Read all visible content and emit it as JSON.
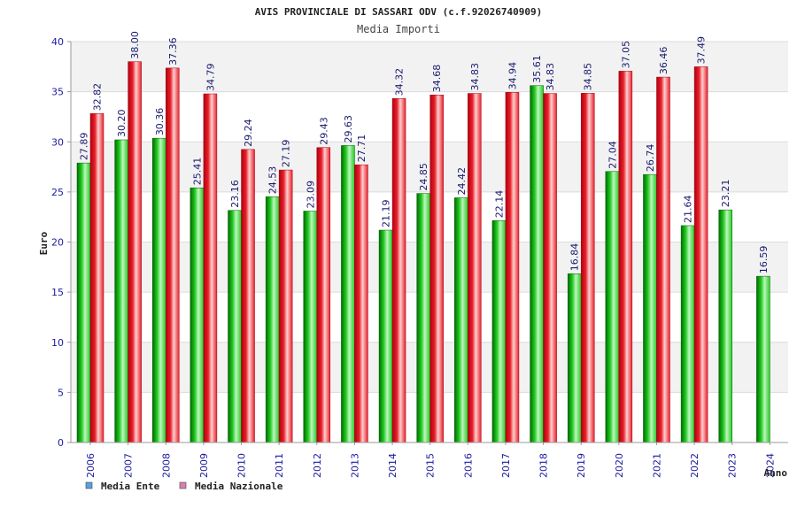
{
  "chart_data": {
    "type": "bar",
    "title": "AVIS PROVINCIALE DI SASSARI ODV (c.f.92026740909)",
    "subtitle": "Media Importi",
    "xlabel": "Anno",
    "ylabel": "Euro",
    "ylim": [
      0,
      40
    ],
    "yticks": [
      "0",
      "5",
      "10",
      "15",
      "20",
      "25",
      "30",
      "35",
      "40"
    ],
    "grid": true,
    "legend_position": "bottom-left",
    "categories": [
      "2006",
      "2007",
      "2008",
      "2009",
      "2010",
      "2011",
      "2012",
      "2013",
      "2014",
      "2015",
      "2016",
      "2017",
      "2018",
      "2019",
      "2020",
      "2021",
      "2022",
      "2023",
      "2024"
    ],
    "series": [
      {
        "name": "Media Ente",
        "color": "#00aa00",
        "legend_color": "#5aa0e0",
        "values": [
          27.89,
          30.2,
          30.36,
          25.41,
          23.16,
          24.53,
          23.09,
          29.63,
          21.19,
          24.85,
          24.42,
          22.14,
          35.61,
          16.84,
          27.04,
          26.74,
          21.64,
          23.21,
          16.59
        ],
        "labels": [
          "27.89",
          "30.20",
          "30.36",
          "25.41",
          "23.16",
          "24.53",
          "23.09",
          "29.63",
          "21.19",
          "24.85",
          "24.42",
          "22.14",
          "35.61",
          "16.84",
          "27.04",
          "26.74",
          "21.64",
          "23.21",
          "16.59"
        ]
      },
      {
        "name": "Media Nazionale",
        "color": "#e8202a",
        "legend_color": "#d880b0",
        "values": [
          32.82,
          38.0,
          37.36,
          34.79,
          29.24,
          27.19,
          29.43,
          27.71,
          34.32,
          34.68,
          34.83,
          34.94,
          34.83,
          34.85,
          37.05,
          36.46,
          37.49,
          null,
          null
        ],
        "labels": [
          "32.82",
          "38.00",
          "37.36",
          "34.79",
          "29.24",
          "27.19",
          "29.43",
          "27.71",
          "34.32",
          "34.68",
          "34.83",
          "34.94",
          "34.83",
          "34.85",
          "37.05",
          "36.46",
          "37.49",
          null,
          null
        ]
      }
    ]
  }
}
